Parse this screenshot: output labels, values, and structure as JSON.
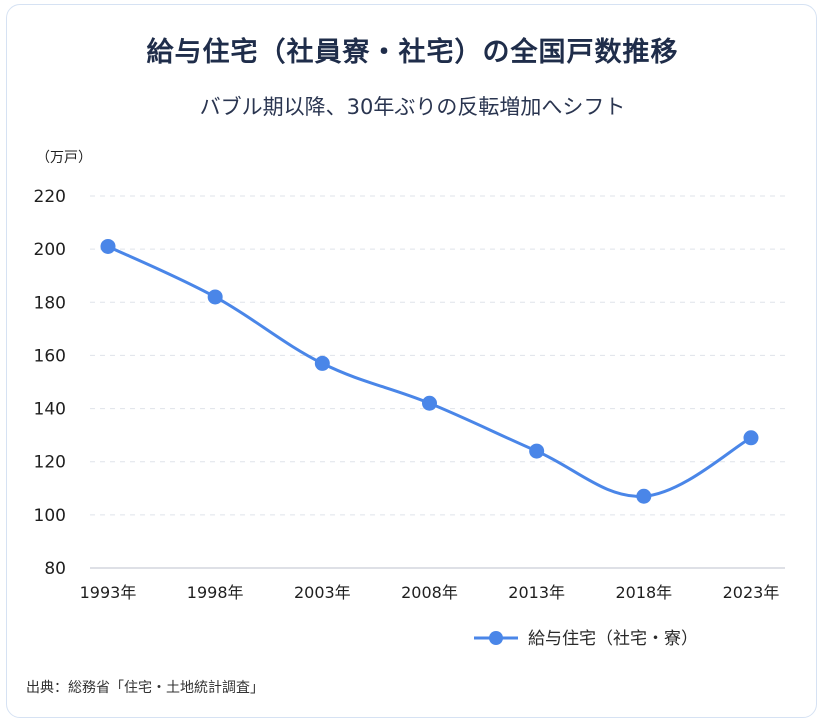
{
  "chart_data": {
    "type": "line",
    "title": "給与住宅（社員寮・社宅）の全国戸数推移",
    "subtitle": "バブル期以降、30年ぶりの反転増加へシフト",
    "y_unit": "（万戸）",
    "categories": [
      "1993年",
      "1998年",
      "2003年",
      "2008年",
      "2013年",
      "2018年",
      "2023年"
    ],
    "series": [
      {
        "name": "給与住宅（社宅・寮）",
        "values": [
          201,
          182,
          157,
          142,
          124,
          107,
          129
        ]
      }
    ],
    "ylim": [
      80,
      220
    ],
    "yticks": [
      80,
      100,
      120,
      140,
      160,
      180,
      200,
      220
    ],
    "grid": true,
    "legend_position": "bottom-right",
    "line_color": "#4a86e8",
    "source": "出典：総務省「住宅・土地統計調査」"
  }
}
